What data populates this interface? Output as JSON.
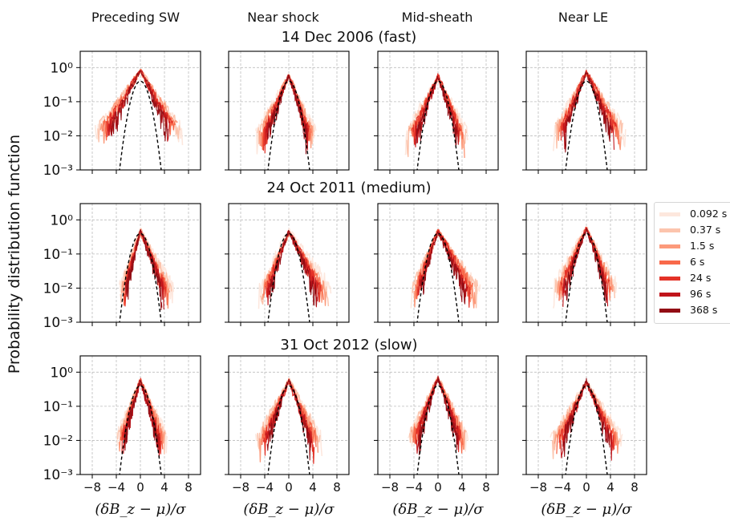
{
  "figure": {
    "column_titles": [
      "Preceding SW",
      "Near shock",
      "Mid-sheath",
      "Near LE"
    ],
    "row_titles": [
      "14 Dec 2006 (fast)",
      "24 Oct 2011 (medium)",
      "31 Oct 2012 (slow)"
    ],
    "ylabel": "Probability distribution function",
    "xlabel": "(δB_z − μ)/σ"
  },
  "legend": {
    "entries": [
      "0.092 s",
      "0.37 s",
      "1.5 s",
      "6 s",
      "24 s",
      "96 s",
      "368 s"
    ],
    "colors": [
      "#fde7dd",
      "#fcc4ad",
      "#fc9a7b",
      "#f8694a",
      "#e43227",
      "#c1151b",
      "#920d14"
    ]
  },
  "chart_data": {
    "type": "line",
    "grid": true,
    "yscale": "log",
    "xlim": [
      -10,
      10
    ],
    "ylim": [
      0.001,
      3
    ],
    "x_ticks": [
      -8,
      -4,
      0,
      4,
      8
    ],
    "x_tick_labels": [
      "−8",
      "−4",
      "0",
      "4",
      "8"
    ],
    "y_ticks": [
      1,
      0.1,
      0.01,
      0.001
    ],
    "reference_curve": "gaussian (dashed, black)",
    "panels": [
      {
        "row": 0,
        "col": 0,
        "peak": 0.9,
        "lower_x": -7.5,
        "upper_x": 7.0
      },
      {
        "row": 0,
        "col": 1,
        "peak": 0.6,
        "lower_x": -5.5,
        "upper_x": 4.5
      },
      {
        "row": 0,
        "col": 2,
        "peak": 0.6,
        "lower_x": -5.5,
        "upper_x": 5.0
      },
      {
        "row": 0,
        "col": 3,
        "peak": 0.8,
        "lower_x": -5.5,
        "upper_x": 6.5
      },
      {
        "row": 1,
        "col": 0,
        "peak": 0.5,
        "lower_x": -3.5,
        "upper_x": 5.5
      },
      {
        "row": 1,
        "col": 1,
        "peak": 0.5,
        "lower_x": -5.0,
        "upper_x": 7.0
      },
      {
        "row": 1,
        "col": 2,
        "peak": 0.5,
        "lower_x": -4.5,
        "upper_x": 7.0
      },
      {
        "row": 1,
        "col": 3,
        "peak": 0.6,
        "lower_x": -5.5,
        "upper_x": 5.0
      },
      {
        "row": 2,
        "col": 0,
        "peak": 0.6,
        "lower_x": -4.0,
        "upper_x": 4.5
      },
      {
        "row": 2,
        "col": 1,
        "peak": 0.6,
        "lower_x": -5.5,
        "upper_x": 5.5
      },
      {
        "row": 2,
        "col": 2,
        "peak": 0.7,
        "lower_x": -5.0,
        "upper_x": 5.0
      },
      {
        "row": 2,
        "col": 3,
        "peak": 0.6,
        "lower_x": -6.0,
        "upper_x": 6.0
      }
    ]
  }
}
